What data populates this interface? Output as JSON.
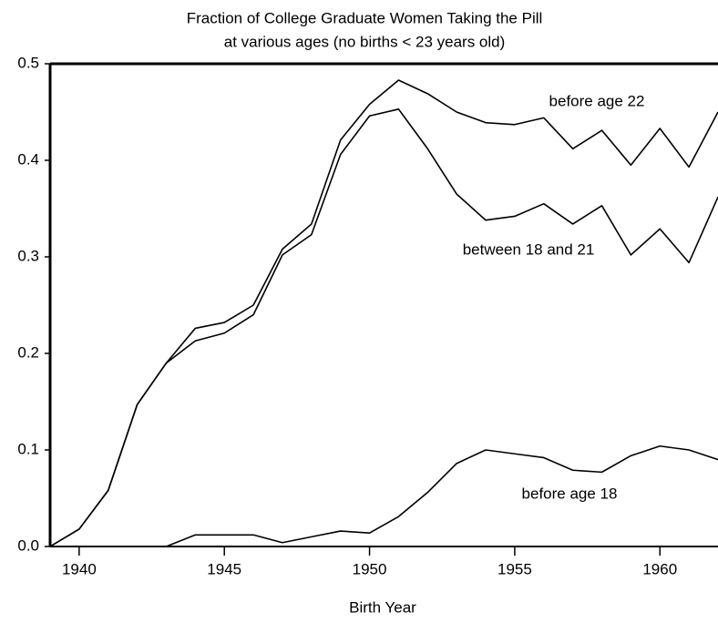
{
  "chart_data": {
    "type": "line",
    "title": "Fraction of College Graduate Women Taking the Pill",
    "subtitle": "at various ages (no births < 23 years old)",
    "xlabel": "Birth Year",
    "x": [
      1939,
      1940,
      1941,
      1942,
      1943,
      1944,
      1945,
      1946,
      1947,
      1948,
      1949,
      1950,
      1951,
      1952,
      1953,
      1954,
      1955,
      1956,
      1957,
      1958,
      1959,
      1960,
      1961,
      1962
    ],
    "series": [
      {
        "name": "before age 22",
        "color": "#000000",
        "values": [
          0,
          0.018,
          0.058,
          0.147,
          0.19,
          0.226,
          0.232,
          0.25,
          0.308,
          0.334,
          0.421,
          0.458,
          0.483,
          0.469,
          0.45,
          0.439,
          0.437,
          0.444,
          0.412,
          0.431,
          0.395,
          0.433,
          0.393,
          0.45
        ]
      },
      {
        "name": "between 18 and 21",
        "color": "#000000",
        "values": [
          0,
          0.018,
          0.058,
          0.147,
          0.19,
          0.213,
          0.221,
          0.24,
          0.302,
          0.323,
          0.406,
          0.446,
          0.453,
          0.412,
          0.365,
          0.338,
          0.342,
          0.355,
          0.334,
          0.353,
          0.302,
          0.329,
          0.294,
          0.362
        ]
      },
      {
        "name": "before age 18",
        "color": "#000000",
        "values": [
          null,
          null,
          null,
          null,
          0,
          0.012,
          0.012,
          0.012,
          0.004,
          0.01,
          0.016,
          0.014,
          0.031,
          0.056,
          0.086,
          0.1,
          0.096,
          0.092,
          0.079,
          0.077,
          0.094,
          0.104,
          0.1,
          0.09
        ]
      }
    ],
    "xlim": [
      1939,
      1962
    ],
    "ylim": [
      0,
      0.5
    ],
    "xticks": [
      1940,
      1945,
      1950,
      1955,
      1960
    ],
    "yticks": [
      {
        "value": 0,
        "label": "0.0"
      },
      0.1,
      0.2,
      0.3,
      0.4,
      0.5
    ]
  }
}
